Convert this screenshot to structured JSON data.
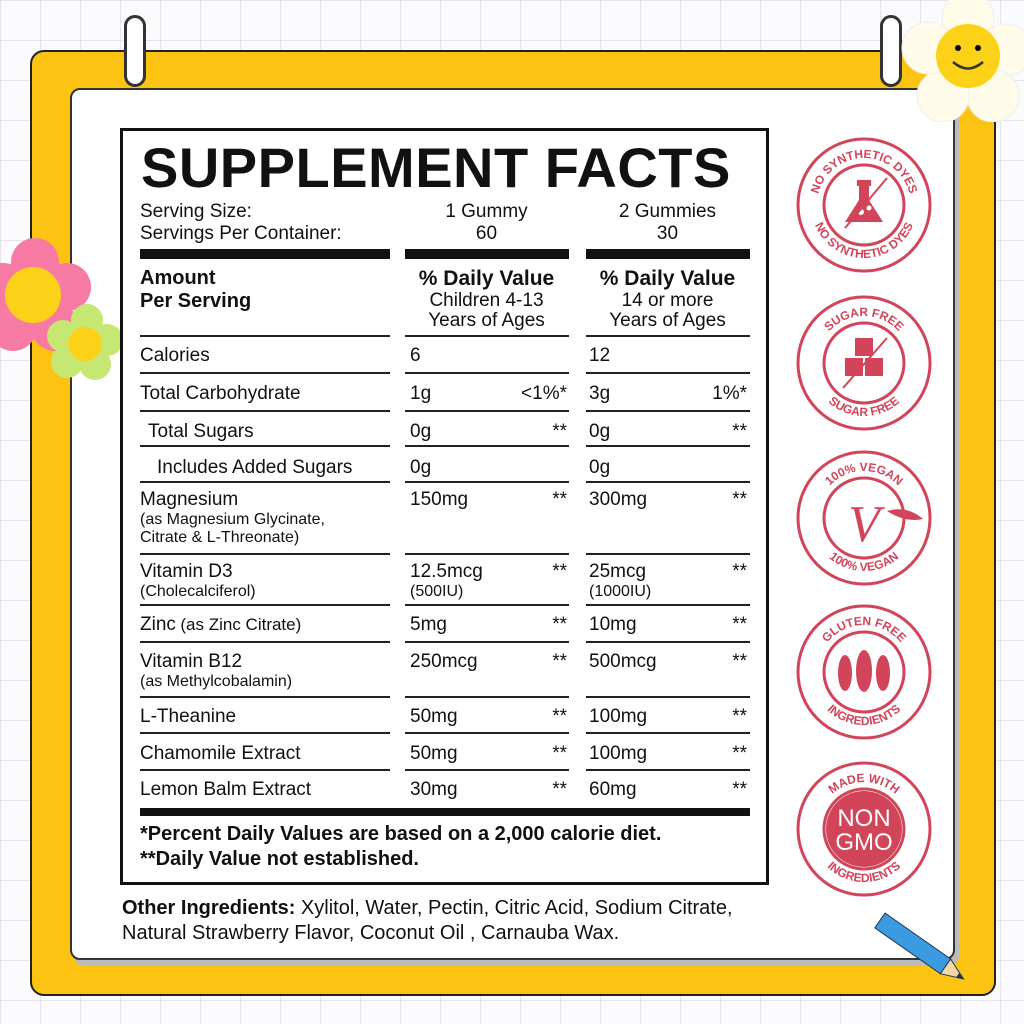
{
  "title": "SUPPLEMENT FACTS",
  "serving": {
    "size_label": "Serving Size:",
    "count_label": "Servings Per Container:",
    "col1_size": "1 Gummy",
    "col1_count": "60",
    "col2_size": "2 Gummies",
    "col2_count": "30"
  },
  "header": {
    "amount": "Amount",
    "per_serving": "Per Serving",
    "col1_dv": "% Daily Value",
    "col1_l1": "Children 4-13",
    "col1_l2": "Years of Ages",
    "col2_dv": "% Daily Value",
    "col2_l1": "14 or more",
    "col2_l2": "Years of Ages"
  },
  "rows": [
    {
      "label": "Calories",
      "c1": "6",
      "c1dv": "",
      "c2": "12",
      "c2dv": ""
    },
    {
      "label": "Total Carbohydrate",
      "c1": "1g",
      "c1dv": "<1%*",
      "c2": "3g",
      "c2dv": "1%*"
    },
    {
      "label": "Total Sugars",
      "c1": "0g",
      "c1dv": "**",
      "c2": "0g",
      "c2dv": "**"
    },
    {
      "label": "Includes Added Sugars",
      "c1": "0g",
      "c1dv": "",
      "c2": "0g",
      "c2dv": ""
    },
    {
      "label": "Magnesium",
      "sub1": "(as Magnesium Glycinate,",
      "sub2": "Citrate & L-Threonate)",
      "c1": "150mg",
      "c1dv": "**",
      "c2": "300mg",
      "c2dv": "**"
    },
    {
      "label": "Vitamin D3",
      "sub1": "(Cholecalciferol)",
      "c1": "12.5mcg",
      "c1sub": "(500IU)",
      "c1dv": "**",
      "c2": "25mcg",
      "c2sub": "(1000IU)",
      "c2dv": "**"
    },
    {
      "label": "Zinc",
      "inline": "(as Zinc Citrate)",
      "c1": "5mg",
      "c1dv": "**",
      "c2": "10mg",
      "c2dv": "**"
    },
    {
      "label": "Vitamin B12",
      "sub1": "(as Methylcobalamin)",
      "c1": "250mcg",
      "c1dv": "**",
      "c2": "500mcg",
      "c2dv": "**"
    },
    {
      "label": "L-Theanine",
      "c1": "50mg",
      "c1dv": "**",
      "c2": "100mg",
      "c2dv": "**"
    },
    {
      "label": "Chamomile Extract",
      "c1": "50mg",
      "c1dv": "**",
      "c2": "100mg",
      "c2dv": "**"
    },
    {
      "label": "Lemon Balm Extract",
      "c1": "30mg",
      "c1dv": "**",
      "c2": "60mg",
      "c2dv": "**"
    }
  ],
  "footnotes": [
    "*Percent Daily Values are based on a 2,000 calorie diet.",
    "**Daily Value not established."
  ],
  "other": {
    "label": "Other Ingredients:",
    "text": " Xylitol, Water, Pectin, Citric Acid, Sodium Citrate, Natural Strawberry Flavor, Coconut Oil , Carnauba Wax."
  },
  "badges": [
    {
      "icon": "flask-icon",
      "top": "NO SYNTHETIC DYES",
      "bottom": "NO SYNTHETIC DYES"
    },
    {
      "icon": "sugar-cubes-icon",
      "top": "SUGAR FREE",
      "bottom": "SUGAR FREE"
    },
    {
      "icon": "vegan-v-icon",
      "top": "100% VEGAN",
      "bottom": "100% VEGAN"
    },
    {
      "icon": "wheat-icon",
      "top": "GLUTEN FREE",
      "bottom": "INGREDIENTS"
    },
    {
      "icon": "non-gmo-icon",
      "top": "MADE WITH",
      "bottom": "INGREDIENTS",
      "center1": "NON",
      "center2": "GMO"
    }
  ],
  "colors": {
    "frame": "#fcc313",
    "badge": "#d2445a"
  }
}
